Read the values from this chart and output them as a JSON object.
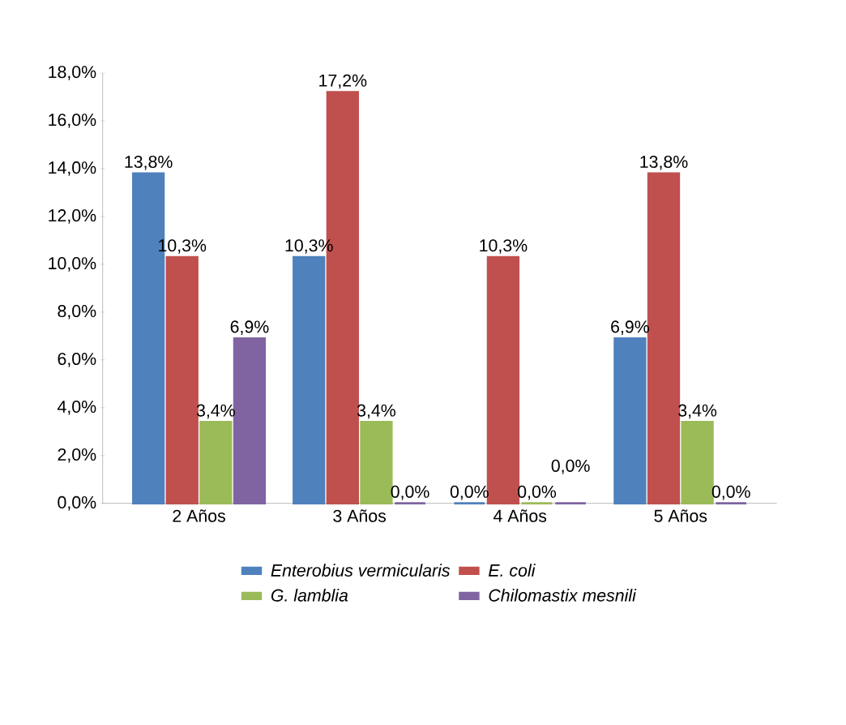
{
  "chart_data": {
    "type": "bar",
    "categories": [
      "2 Años",
      "3 Años",
      "4 Años",
      "5 Años"
    ],
    "series": [
      {
        "name": "Enterobius vermicularis",
        "color": "#4f81bd",
        "values": [
          13.8,
          10.3,
          0.0,
          6.9
        ],
        "value_labels": [
          "13,8%",
          "10,3%",
          "0,0%",
          "6,9%"
        ]
      },
      {
        "name": "E. coli",
        "color": "#c0504d",
        "values": [
          10.3,
          17.2,
          10.3,
          13.8
        ],
        "value_labels": [
          "10,3%",
          "17,2%",
          "10,3%",
          "13,8%"
        ]
      },
      {
        "name": "G. lamblia",
        "color": "#9bbb59",
        "values": [
          3.4,
          3.4,
          0.0,
          3.4
        ],
        "value_labels": [
          "3,4%",
          "3,4%",
          "0,0%",
          "3,4%"
        ]
      },
      {
        "name": "Chilomastix mesnili",
        "color": "#8064a2",
        "values": [
          6.9,
          0.0,
          0.0,
          0.0
        ],
        "value_labels": [
          "6,9%",
          "0,0%",
          "0,0%",
          "0,0%"
        ]
      }
    ],
    "ylim": [
      0,
      18
    ],
    "yticks": [
      {
        "value": 0,
        "label": "0,0%"
      },
      {
        "value": 2,
        "label": "2,0%"
      },
      {
        "value": 4,
        "label": "4,0%"
      },
      {
        "value": 6,
        "label": "6,0%"
      },
      {
        "value": 8,
        "label": "8,0%"
      },
      {
        "value": 10,
        "label": "10,0%"
      },
      {
        "value": 12,
        "label": "12,0%"
      },
      {
        "value": 14,
        "label": "14,0%"
      },
      {
        "value": 16,
        "label": "16,0%"
      },
      {
        "value": 18,
        "label": "18,0%"
      }
    ],
    "grid": false,
    "legend": "bottom"
  }
}
